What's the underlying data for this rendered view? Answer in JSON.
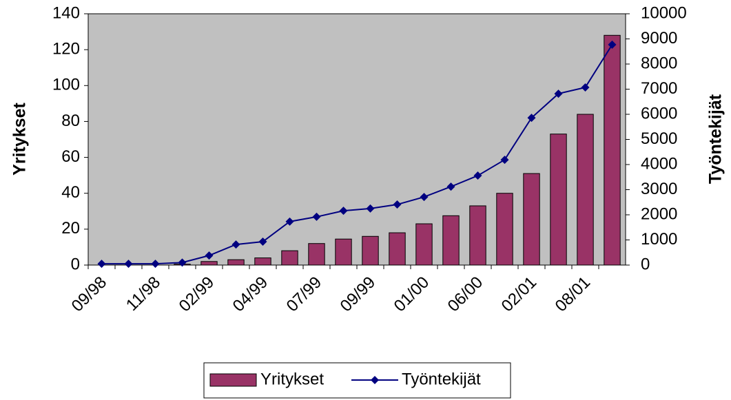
{
  "chart_data": {
    "type": "bar-line",
    "categories": [
      "09/98",
      null,
      "11/98",
      null,
      "02/99",
      null,
      "04/99",
      null,
      "07/99",
      null,
      "09/99",
      null,
      "01/00",
      null,
      "06/00",
      null,
      "02/01",
      null,
      "08/01",
      null
    ],
    "series": [
      {
        "name": "Yritykset",
        "type": "bar",
        "color": "#993366",
        "axis": "y",
        "values": [
          0,
          0,
          0,
          0.5,
          2,
          3,
          4,
          8,
          12,
          14.5,
          16,
          18,
          23,
          27.5,
          33,
          40,
          51,
          73,
          84,
          128
        ]
      },
      {
        "name": "Työntekijät",
        "type": "line",
        "color": "#000080",
        "axis": "y2",
        "values": [
          50,
          50,
          50,
          100,
          380,
          820,
          930,
          1730,
          1920,
          2160,
          2250,
          2410,
          2710,
          3120,
          3560,
          4190,
          5860,
          6820,
          7070,
          8770
        ]
      }
    ],
    "ylabel": "Yritykset",
    "y2label": "Työntekijät",
    "ylim": [
      0,
      140
    ],
    "yticks": [
      0,
      20,
      40,
      60,
      80,
      100,
      120,
      140
    ],
    "y2lim": [
      0,
      10000
    ],
    "y2ticks": [
      0,
      1000,
      2000,
      3000,
      4000,
      5000,
      6000,
      7000,
      8000,
      9000,
      10000
    ],
    "legend": "bottom",
    "plot_background": "#c0c0c0"
  }
}
